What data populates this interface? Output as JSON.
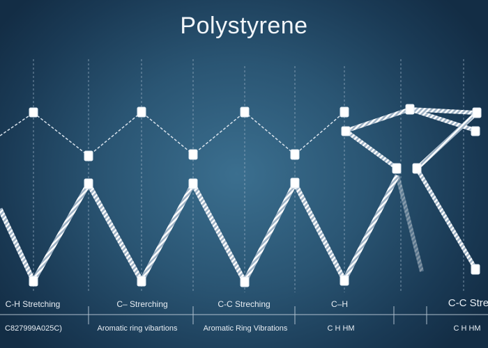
{
  "title": "Polystyrene",
  "labels": {
    "row1": [
      "C-H Stretching",
      "C– Strerching",
      "C-C Streching",
      "C–H",
      "C-C Stret"
    ],
    "row2": [
      "C827999A025C)",
      "Aromatic ring vibartions",
      "Aromatic Ring Vibrations",
      "C H HM",
      "C H HM"
    ]
  },
  "colors": {
    "background": "#2a5573",
    "strand": "#e6ecf2",
    "node": "#ffffff"
  }
}
